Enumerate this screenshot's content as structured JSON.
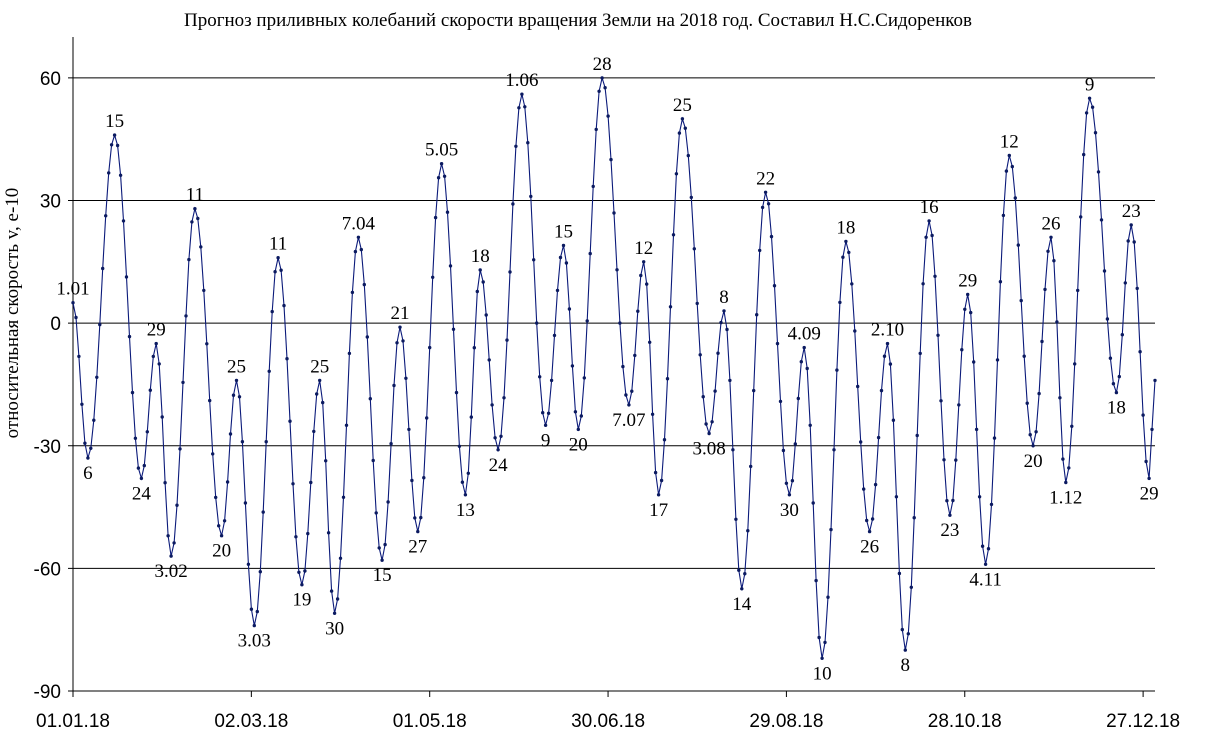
{
  "chart_data": {
    "type": "line",
    "title": "Прогноз приливных колебаний скорости вращения Земли на 2018 год. Составил  Н.С.Сидоренков",
    "ylabel": "относительная скорость v,  e-10",
    "xlabel": "",
    "x_start": "01.01.18",
    "x_end": "31.12.18",
    "ylim": [
      -90,
      70
    ],
    "yticks": [
      60,
      30,
      0,
      -30,
      -60,
      -90
    ],
    "xtick_labels": [
      "01.01.18",
      "02.03.18",
      "01.05.18",
      "30.06.18",
      "29.08.18",
      "28.10.18",
      "27.12.18"
    ],
    "grid": "horizontal",
    "legend": "none",
    "color": "#0b1a7a",
    "extrema": [
      {
        "date": "01.01.18",
        "value": 5,
        "label": "1.01"
      },
      {
        "date": "06.01.18",
        "value": -33,
        "label": "6"
      },
      {
        "date": "15.01.18",
        "value": 46,
        "label": "15"
      },
      {
        "date": "24.01.18",
        "value": -38,
        "label": "24"
      },
      {
        "date": "29.01.18",
        "value": -5,
        "label": "29"
      },
      {
        "date": "03.02.18",
        "value": -57,
        "label": "3.02"
      },
      {
        "date": "11.02.18",
        "value": 28,
        "label": "11"
      },
      {
        "date": "20.02.18",
        "value": -52,
        "label": "20"
      },
      {
        "date": "25.02.18",
        "value": -14,
        "label": "25"
      },
      {
        "date": "03.03.18",
        "value": -74,
        "label": "3.03"
      },
      {
        "date": "11.03.18",
        "value": 16,
        "label": "11"
      },
      {
        "date": "19.03.18",
        "value": -64,
        "label": "19"
      },
      {
        "date": "25.03.18",
        "value": -14,
        "label": "25"
      },
      {
        "date": "30.03.18",
        "value": -71,
        "label": "30"
      },
      {
        "date": "07.04.18",
        "value": 21,
        "label": "7.04"
      },
      {
        "date": "15.04.18",
        "value": -58,
        "label": "15"
      },
      {
        "date": "21.04.18",
        "value": -1,
        "label": "21"
      },
      {
        "date": "27.04.18",
        "value": -51,
        "label": "27"
      },
      {
        "date": "05.05.18",
        "value": 39,
        "label": "5.05"
      },
      {
        "date": "13.05.18",
        "value": -42,
        "label": "13"
      },
      {
        "date": "18.05.18",
        "value": 13,
        "label": "18"
      },
      {
        "date": "24.05.18",
        "value": -31,
        "label": "24"
      },
      {
        "date": "01.06.18",
        "value": 56,
        "label": "1.06"
      },
      {
        "date": "09.06.18",
        "value": -25,
        "label": "9"
      },
      {
        "date": "15.06.18",
        "value": 19,
        "label": "15"
      },
      {
        "date": "20.06.18",
        "value": -26,
        "label": "20"
      },
      {
        "date": "28.06.18",
        "value": 60,
        "label": "28"
      },
      {
        "date": "07.07.18",
        "value": -20,
        "label": "7.07"
      },
      {
        "date": "12.07.18",
        "value": 15,
        "label": "12"
      },
      {
        "date": "17.07.18",
        "value": -42,
        "label": "17"
      },
      {
        "date": "25.07.18",
        "value": 50,
        "label": "25"
      },
      {
        "date": "03.08.18",
        "value": -27,
        "label": "3.08"
      },
      {
        "date": "08.08.18",
        "value": 3,
        "label": "8"
      },
      {
        "date": "14.08.18",
        "value": -65,
        "label": "14"
      },
      {
        "date": "22.08.18",
        "value": 32,
        "label": "22"
      },
      {
        "date": "30.08.18",
        "value": -42,
        "label": "30"
      },
      {
        "date": "04.09.18",
        "value": -6,
        "label": "4.09"
      },
      {
        "date": "10.09.18",
        "value": -82,
        "label": "10"
      },
      {
        "date": "18.09.18",
        "value": 20,
        "label": "18"
      },
      {
        "date": "26.09.18",
        "value": -51,
        "label": "26"
      },
      {
        "date": "02.10.18",
        "value": -5,
        "label": "2.10"
      },
      {
        "date": "08.10.18",
        "value": -80,
        "label": "8"
      },
      {
        "date": "16.10.18",
        "value": 25,
        "label": "16"
      },
      {
        "date": "23.10.18",
        "value": -47,
        "label": "23"
      },
      {
        "date": "29.10.18",
        "value": 7,
        "label": "29"
      },
      {
        "date": "04.11.18",
        "value": -59,
        "label": "4.11"
      },
      {
        "date": "12.11.18",
        "value": 41,
        "label": "12"
      },
      {
        "date": "20.11.18",
        "value": -30,
        "label": "20"
      },
      {
        "date": "26.11.18",
        "value": 21,
        "label": "26"
      },
      {
        "date": "01.12.18",
        "value": -39,
        "label": "1.12"
      },
      {
        "date": "09.12.18",
        "value": 55,
        "label": "9"
      },
      {
        "date": "18.12.18",
        "value": -17,
        "label": "18"
      },
      {
        "date": "23.12.18",
        "value": 24,
        "label": "23"
      },
      {
        "date": "29.12.18",
        "value": -38,
        "label": "29"
      },
      {
        "date": "31.12.18",
        "value": -14,
        "label": ""
      }
    ]
  }
}
